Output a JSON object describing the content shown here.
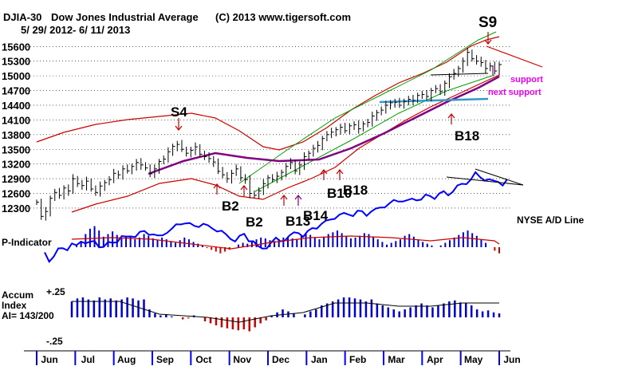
{
  "chart_data": {
    "type": "line",
    "header": {
      "symbol": "DJIA-30",
      "name": "Dow Jones Industrial Average",
      "copyright": "(C) 2013 www.tigersoft.com",
      "date_range": "5/ 29/ 2012- 6/ 11/ 2013"
    },
    "price_panel": {
      "y_ticks": [
        15600,
        15300,
        15000,
        14700,
        14400,
        14100,
        13800,
        13500,
        13200,
        12900,
        12600,
        12300
      ],
      "ylim": [
        12120,
        15800
      ],
      "closes": [
        12420,
        12130,
        12230,
        12500,
        12620,
        12560,
        12710,
        12650,
        12900,
        12800,
        12760,
        12850,
        12690,
        12620,
        12750,
        12820,
        12880,
        13010,
        12980,
        13100,
        13060,
        13150,
        13230,
        13180,
        13120,
        13000,
        13100,
        13250,
        13300,
        13450,
        13560,
        13600,
        13500,
        13420,
        13480,
        13550,
        13400,
        13350,
        13310,
        13240,
        13050,
        12980,
        12900,
        13010,
        13100,
        12920,
        12880,
        12600,
        12560,
        12650,
        12800,
        12920,
        12880,
        12950,
        13030,
        13150,
        13230,
        13060,
        13180,
        13350,
        13420,
        13520,
        13580,
        13720,
        13800,
        13850,
        13900,
        13950,
        13880,
        13980,
        14000,
        13920,
        14020,
        14050,
        14180,
        14250,
        14300,
        14400,
        14450,
        14460,
        14400,
        14480,
        14520,
        14500,
        14600,
        14620,
        14580,
        14700,
        14740,
        14680,
        14850,
        14980,
        15050,
        15150,
        15300,
        15480,
        15350,
        15300,
        15270,
        15150,
        15200,
        15100,
        15230
      ],
      "labels_top": [
        "S9",
        "S4"
      ],
      "labels_bottom": [
        "B2",
        "B2",
        "B13",
        "B14",
        "B10",
        "B18",
        "B18"
      ],
      "annotations": [
        "support",
        "next support"
      ],
      "line_name": "NYSE A/D Line"
    },
    "p_indicator": {
      "label": "P-Indicator",
      "values": [
        4,
        14,
        30,
        42,
        48,
        38,
        24,
        30,
        36,
        28,
        20,
        24,
        26,
        18,
        22,
        30,
        26,
        20,
        16,
        22,
        18,
        14,
        10,
        16,
        22,
        18,
        12,
        8,
        4,
        -2,
        -6,
        -10,
        -14,
        -10,
        -6,
        0,
        6,
        10,
        8,
        12,
        18,
        22,
        20,
        16,
        14,
        18,
        22,
        24,
        20,
        18,
        26,
        30,
        28,
        22,
        18,
        24,
        30,
        34,
        38,
        32,
        26,
        20,
        22,
        26,
        32,
        30,
        24,
        18,
        12,
        6,
        10,
        14,
        18,
        26,
        30,
        24,
        18,
        12,
        8,
        4,
        0,
        4,
        10,
        16,
        22,
        28,
        34,
        38,
        32,
        26,
        18,
        10,
        0,
        -8,
        -14
      ]
    },
    "accum_index": {
      "label_lines": [
        "Accum",
        "Index",
        "AI= 143/200"
      ],
      "top_label": "+.25",
      "bottom_label": "-.25",
      "values": [
        0.16,
        0.19,
        0.2,
        0.18,
        0.17,
        0.2,
        0.18,
        0.19,
        0.17,
        0.18,
        0.2,
        0.19,
        0.17,
        0.18,
        0.08,
        0.04,
        0.02,
        0.03,
        0.01,
        0.0,
        -0.02,
        -0.01,
        0.02,
        0.0,
        -0.04,
        -0.06,
        -0.08,
        -0.1,
        -0.11,
        -0.12,
        -0.13,
        -0.12,
        -0.14,
        -0.1,
        -0.06,
        -0.03,
        0.02,
        0.05,
        0.08,
        0.06,
        0.04,
        0.0,
        0.03,
        0.06,
        0.08,
        0.12,
        0.14,
        0.16,
        0.18,
        0.2,
        0.2,
        0.19,
        0.18,
        0.16,
        0.18,
        0.14,
        0.12,
        0.1,
        0.08,
        0.06,
        0.08,
        0.1,
        0.12,
        0.14,
        0.12,
        0.1,
        0.12,
        0.14,
        0.16,
        0.17,
        0.15,
        0.14,
        0.12,
        0.08,
        0.06,
        0.07,
        0.05,
        0.04
      ]
    },
    "x_axis": [
      "Jun",
      "Jul",
      "Aug",
      "Sep",
      "Oct",
      "Nov",
      "Dec",
      "Jan",
      "Feb",
      "Mar",
      "Apr",
      "May",
      "Jun"
    ]
  }
}
